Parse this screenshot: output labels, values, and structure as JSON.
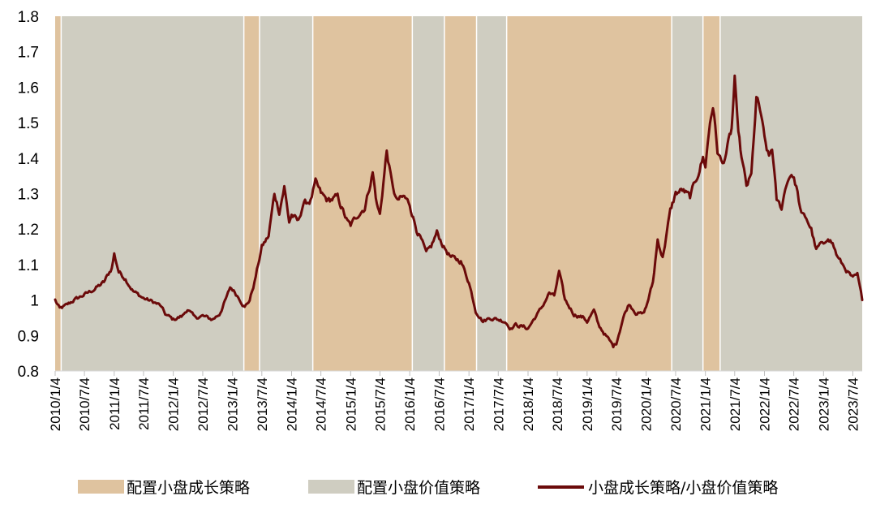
{
  "chart_data": {
    "type": "line",
    "title": "",
    "xlabel": "",
    "ylabel": "",
    "ylim": [
      0.8,
      1.8
    ],
    "y_ticks": [
      "0.8",
      "0.9",
      "1",
      "1.1",
      "1.2",
      "1.3",
      "1.4",
      "1.5",
      "1.6",
      "1.7",
      "1.8"
    ],
    "x_range": [
      "2010-01-04",
      "2023-08-31"
    ],
    "x_ticks": [
      "2010/1/4",
      "2010/7/4",
      "2011/1/4",
      "2011/7/4",
      "2012/1/4",
      "2012/7/4",
      "2013/1/4",
      "2013/7/4",
      "2014/1/4",
      "2014/7/4",
      "2015/1/4",
      "2015/7/4",
      "2016/1/4",
      "2016/7/4",
      "2017/1/4",
      "2017/7/4",
      "2018/1/4",
      "2018/7/4",
      "2019/1/4",
      "2019/7/4",
      "2020/1/4",
      "2020/7/4",
      "2021/1/4",
      "2021/7/4",
      "2022/1/4",
      "2022/7/4",
      "2023/1/4",
      "2023/7/4"
    ],
    "grid": false,
    "legend_position": "bottom",
    "legend": [
      {
        "label": "配置小盘成长策略",
        "kind": "band",
        "color": "#dfc39f"
      },
      {
        "label": "配置小盘价值策略",
        "kind": "band",
        "color": "#cfcdc1"
      },
      {
        "label": "小盘成长策略/小盘价值策略",
        "kind": "line",
        "color": "#6b0a0a"
      }
    ],
    "regimes": [
      {
        "start": "2010-01-04",
        "end": "2010-02-10",
        "strategy": "growth"
      },
      {
        "start": "2010-02-10",
        "end": "2013-03-15",
        "strategy": "value"
      },
      {
        "start": "2013-03-15",
        "end": "2013-06-20",
        "strategy": "growth"
      },
      {
        "start": "2013-06-20",
        "end": "2014-05-15",
        "strategy": "value"
      },
      {
        "start": "2014-05-15",
        "end": "2016-01-20",
        "strategy": "growth"
      },
      {
        "start": "2016-01-20",
        "end": "2016-08-05",
        "strategy": "value"
      },
      {
        "start": "2016-08-05",
        "end": "2017-02-20",
        "strategy": "growth"
      },
      {
        "start": "2017-02-20",
        "end": "2017-08-25",
        "strategy": "value"
      },
      {
        "start": "2017-08-25",
        "end": "2020-06-10",
        "strategy": "growth"
      },
      {
        "start": "2020-06-10",
        "end": "2020-12-20",
        "strategy": "value"
      },
      {
        "start": "2020-12-20",
        "end": "2021-04-05",
        "strategy": "growth"
      },
      {
        "start": "2021-04-05",
        "end": "2023-08-31",
        "strategy": "value"
      }
    ],
    "series": [
      {
        "name": "小盘成长策略/小盘价值策略",
        "color": "#6b0a0a",
        "points": [
          [
            "2010-01-04",
            1.0
          ],
          [
            "2010-02-01",
            0.975
          ],
          [
            "2010-03-15",
            0.985
          ],
          [
            "2010-05-01",
            1.0
          ],
          [
            "2010-07-04",
            1.015
          ],
          [
            "2010-09-01",
            1.03
          ],
          [
            "2010-11-01",
            1.05
          ],
          [
            "2010-12-20",
            1.09
          ],
          [
            "2011-01-04",
            1.13
          ],
          [
            "2011-02-01",
            1.08
          ],
          [
            "2011-03-15",
            1.06
          ],
          [
            "2011-05-01",
            1.025
          ],
          [
            "2011-07-04",
            1.005
          ],
          [
            "2011-09-01",
            0.995
          ],
          [
            "2011-10-15",
            0.985
          ],
          [
            "2011-11-15",
            0.96
          ],
          [
            "2012-01-04",
            0.945
          ],
          [
            "2012-03-01",
            0.955
          ],
          [
            "2012-04-01",
            0.975
          ],
          [
            "2012-05-15",
            0.95
          ],
          [
            "2012-07-04",
            0.955
          ],
          [
            "2012-09-01",
            0.945
          ],
          [
            "2012-10-15",
            0.96
          ],
          [
            "2012-12-01",
            1.01
          ],
          [
            "2012-12-20",
            1.035
          ],
          [
            "2013-01-04",
            1.03
          ],
          [
            "2013-02-15",
            1.005
          ],
          [
            "2013-03-20",
            0.98
          ],
          [
            "2013-04-20",
            1.0
          ],
          [
            "2013-05-20",
            1.05
          ],
          [
            "2013-07-04",
            1.15
          ],
          [
            "2013-08-15",
            1.18
          ],
          [
            "2013-09-20",
            1.3
          ],
          [
            "2013-10-20",
            1.25
          ],
          [
            "2013-11-20",
            1.32
          ],
          [
            "2013-12-20",
            1.22
          ],
          [
            "2014-01-04",
            1.24
          ],
          [
            "2014-02-15",
            1.22
          ],
          [
            "2014-03-15",
            1.27
          ],
          [
            "2014-05-01",
            1.28
          ],
          [
            "2014-06-01",
            1.33
          ],
          [
            "2014-07-04",
            1.3
          ],
          [
            "2014-08-15",
            1.28
          ],
          [
            "2014-10-15",
            1.29
          ],
          [
            "2014-12-15",
            1.22
          ],
          [
            "2015-01-04",
            1.21
          ],
          [
            "2015-02-15",
            1.24
          ],
          [
            "2015-04-01",
            1.26
          ],
          [
            "2015-05-20",
            1.36
          ],
          [
            "2015-06-15",
            1.27
          ],
          [
            "2015-07-04",
            1.24
          ],
          [
            "2015-08-15",
            1.42
          ],
          [
            "2015-09-15",
            1.33
          ],
          [
            "2015-10-15",
            1.28
          ],
          [
            "2015-12-01",
            1.29
          ],
          [
            "2016-01-04",
            1.27
          ],
          [
            "2016-02-15",
            1.2
          ],
          [
            "2016-03-15",
            1.17
          ],
          [
            "2016-04-15",
            1.13
          ],
          [
            "2016-05-15",
            1.15
          ],
          [
            "2016-06-20",
            1.19
          ],
          [
            "2016-08-01",
            1.15
          ],
          [
            "2016-09-15",
            1.12
          ],
          [
            "2016-11-15",
            1.11
          ],
          [
            "2017-01-04",
            1.05
          ],
          [
            "2017-02-15",
            0.97
          ],
          [
            "2017-04-01",
            0.94
          ],
          [
            "2017-05-15",
            0.95
          ],
          [
            "2017-07-04",
            0.945
          ],
          [
            "2017-08-15",
            0.94
          ],
          [
            "2017-09-20",
            0.92
          ],
          [
            "2017-10-20",
            0.93
          ],
          [
            "2017-12-01",
            0.925
          ],
          [
            "2018-01-04",
            0.92
          ],
          [
            "2018-02-15",
            0.95
          ],
          [
            "2018-04-01",
            0.98
          ],
          [
            "2018-05-15",
            1.02
          ],
          [
            "2018-06-15",
            1.01
          ],
          [
            "2018-07-15",
            1.08
          ],
          [
            "2018-08-20",
            1.0
          ],
          [
            "2018-10-15",
            0.96
          ],
          [
            "2018-12-15",
            0.95
          ],
          [
            "2019-01-04",
            0.94
          ],
          [
            "2019-02-15",
            0.97
          ],
          [
            "2019-03-15",
            0.93
          ],
          [
            "2019-05-15",
            0.89
          ],
          [
            "2019-06-15",
            0.87
          ],
          [
            "2019-07-04",
            0.88
          ],
          [
            "2019-08-15",
            0.95
          ],
          [
            "2019-09-20",
            0.99
          ],
          [
            "2019-11-01",
            0.965
          ],
          [
            "2019-12-15",
            0.96
          ],
          [
            "2020-01-04",
            0.98
          ],
          [
            "2020-02-15",
            1.05
          ],
          [
            "2020-03-15",
            1.17
          ],
          [
            "2020-04-15",
            1.12
          ],
          [
            "2020-06-01",
            1.25
          ],
          [
            "2020-07-04",
            1.3
          ],
          [
            "2020-08-15",
            1.31
          ],
          [
            "2020-10-01",
            1.29
          ],
          [
            "2020-11-15",
            1.35
          ],
          [
            "2020-12-20",
            1.4
          ],
          [
            "2021-01-04",
            1.38
          ],
          [
            "2021-02-01",
            1.5
          ],
          [
            "2021-02-20",
            1.55
          ],
          [
            "2021-03-20",
            1.42
          ],
          [
            "2021-04-20",
            1.38
          ],
          [
            "2021-05-20",
            1.43
          ],
          [
            "2021-06-15",
            1.48
          ],
          [
            "2021-07-04",
            1.62
          ],
          [
            "2021-07-20",
            1.5
          ],
          [
            "2021-08-15",
            1.4
          ],
          [
            "2021-09-15",
            1.32
          ],
          [
            "2021-10-15",
            1.35
          ],
          [
            "2021-11-15",
            1.57
          ],
          [
            "2021-12-15",
            1.52
          ],
          [
            "2022-01-04",
            1.45
          ],
          [
            "2022-02-01",
            1.4
          ],
          [
            "2022-02-20",
            1.43
          ],
          [
            "2022-03-20",
            1.28
          ],
          [
            "2022-04-20",
            1.26
          ],
          [
            "2022-05-20",
            1.33
          ],
          [
            "2022-06-20",
            1.36
          ],
          [
            "2022-07-20",
            1.32
          ],
          [
            "2022-08-20",
            1.24
          ],
          [
            "2022-09-20",
            1.23
          ],
          [
            "2022-10-20",
            1.2
          ],
          [
            "2022-11-20",
            1.14
          ],
          [
            "2022-12-20",
            1.16
          ],
          [
            "2023-01-04",
            1.15
          ],
          [
            "2023-02-01",
            1.18
          ],
          [
            "2023-03-01",
            1.16
          ],
          [
            "2023-04-01",
            1.12
          ],
          [
            "2023-05-01",
            1.1
          ],
          [
            "2023-06-01",
            1.08
          ],
          [
            "2023-07-04",
            1.06
          ],
          [
            "2023-08-01",
            1.07
          ],
          [
            "2023-08-31",
            1.0
          ]
        ]
      }
    ]
  }
}
